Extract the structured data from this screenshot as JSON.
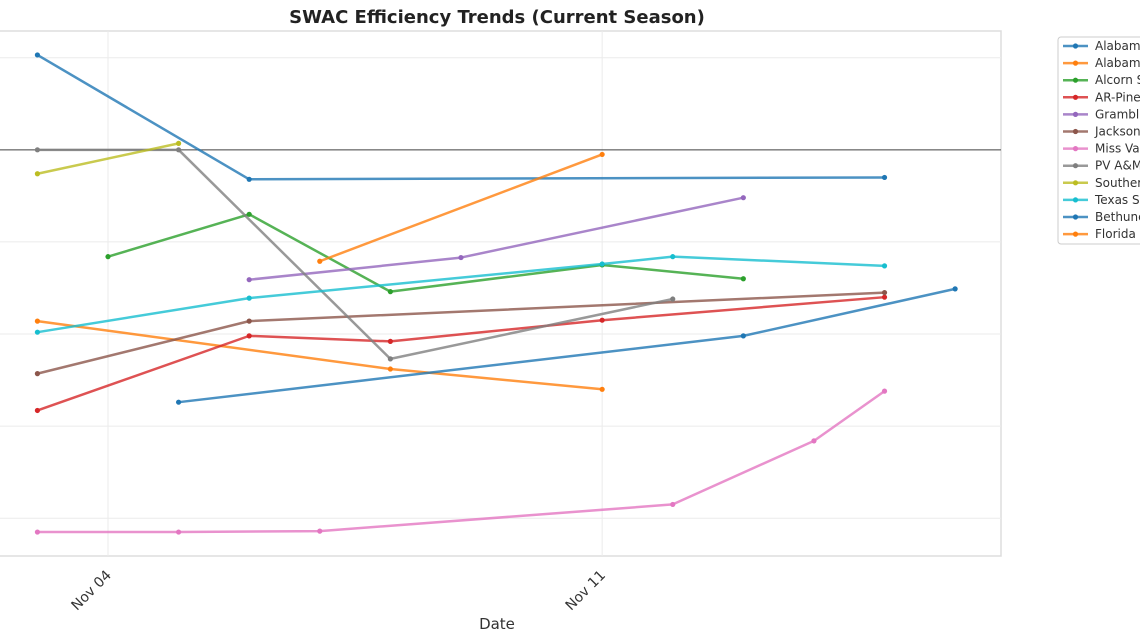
{
  "chart_data": {
    "type": "line",
    "title": "SWAC Efficiency Trends (Current Season)",
    "xlabel": "Date",
    "ylabel": "",
    "x_ticks": [
      {
        "day": 4,
        "label": "Nov 04"
      },
      {
        "day": 11,
        "label": "Nov 11"
      }
    ],
    "xlim": [
      2.47,
      16.65
    ],
    "ylim": [
      55.9,
      112.9
    ],
    "y_gridlines": [
      60,
      70,
      80,
      90,
      100,
      110
    ],
    "reference_line": 100,
    "grid": true,
    "legend_position": "outside-right",
    "series": [
      {
        "name": "Alabam",
        "color": "#1f77b4",
        "points": [
          [
            3,
            110.3
          ],
          [
            6,
            96.8
          ],
          [
            15,
            97.0
          ]
        ]
      },
      {
        "name": "Alabam",
        "color": "#ff7f0e",
        "points": [
          [
            3,
            81.4
          ],
          [
            8,
            76.2
          ],
          [
            11,
            74.0
          ]
        ]
      },
      {
        "name": "Alcorn S",
        "color": "#2ca02c",
        "points": [
          [
            4,
            88.4
          ],
          [
            6,
            93.0
          ],
          [
            8,
            84.6
          ],
          [
            11,
            87.5
          ],
          [
            13,
            86.0
          ]
        ]
      },
      {
        "name": "AR-Pine",
        "color": "#d62728",
        "points": [
          [
            3,
            71.7
          ],
          [
            6,
            79.8
          ],
          [
            8,
            79.2
          ],
          [
            11,
            81.5
          ],
          [
            15,
            84.0
          ]
        ]
      },
      {
        "name": "Grambli",
        "color": "#9467bd",
        "points": [
          [
            6,
            85.9
          ],
          [
            9,
            88.3
          ],
          [
            13,
            94.8
          ]
        ]
      },
      {
        "name": "Jackson",
        "color": "#8c564b",
        "points": [
          [
            3,
            75.7
          ],
          [
            6,
            81.4
          ],
          [
            15,
            84.5
          ]
        ]
      },
      {
        "name": "Miss Va",
        "color": "#e377c2",
        "points": [
          [
            3,
            58.5
          ],
          [
            5,
            58.5
          ],
          [
            7,
            58.6
          ],
          [
            12,
            61.5
          ],
          [
            14,
            68.4
          ],
          [
            15,
            73.8
          ]
        ]
      },
      {
        "name": "PV A&M",
        "color": "#7f7f7f",
        "points": [
          [
            3,
            100
          ],
          [
            5,
            100
          ],
          [
            8,
            77.3
          ],
          [
            12,
            83.8
          ]
        ]
      },
      {
        "name": "Souther",
        "color": "#bcbd22",
        "points": [
          [
            3,
            97.4
          ],
          [
            5,
            100.7
          ]
        ]
      },
      {
        "name": "Texas S",
        "color": "#17becf",
        "points": [
          [
            3,
            80.2
          ],
          [
            6,
            83.9
          ],
          [
            11,
            87.6
          ],
          [
            12,
            88.4
          ],
          [
            15,
            87.4
          ]
        ]
      },
      {
        "name": "Bethune",
        "color": "#1f77b4",
        "points": [
          [
            5,
            72.6
          ],
          [
            13,
            79.8
          ],
          [
            16,
            84.9
          ]
        ]
      },
      {
        "name": "Florida .",
        "color": "#ff7f0e",
        "points": [
          [
            7,
            87.9
          ],
          [
            11,
            99.5
          ]
        ]
      }
    ]
  }
}
